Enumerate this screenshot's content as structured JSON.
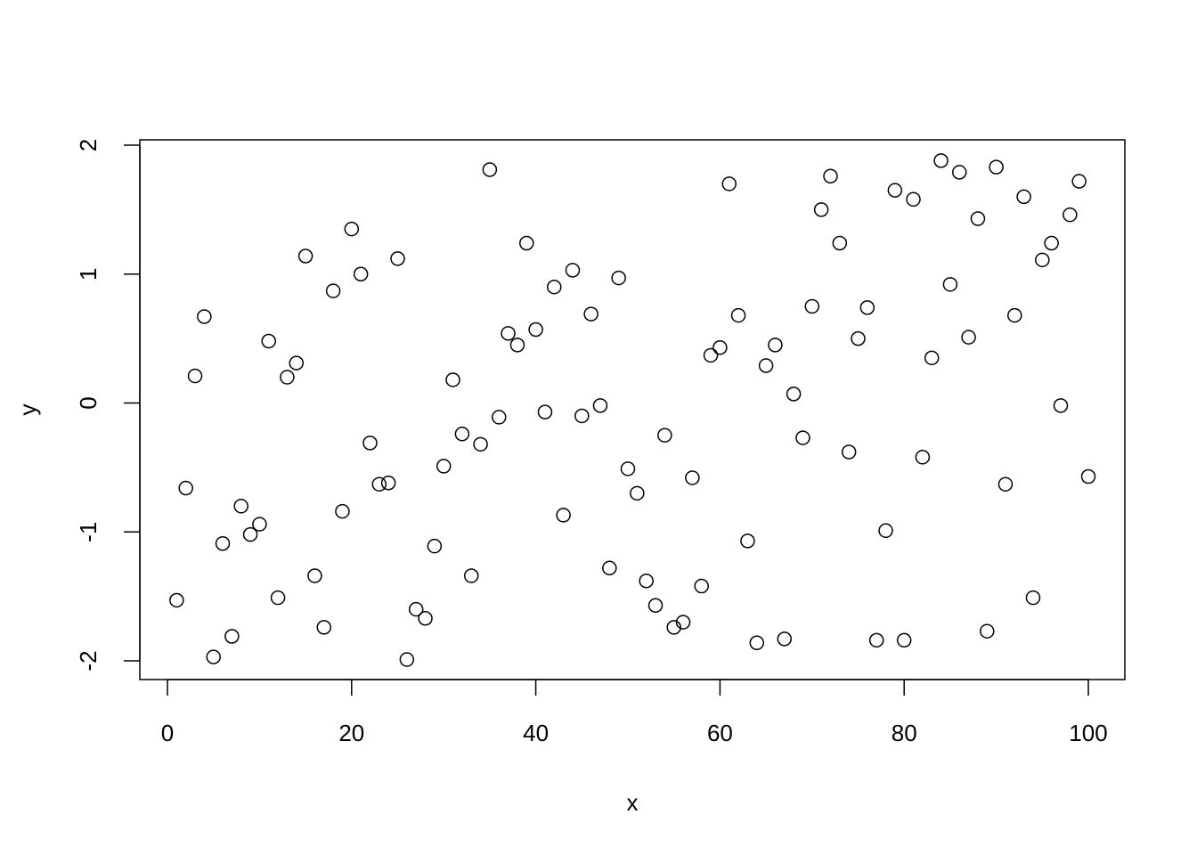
{
  "chart_data": {
    "type": "scatter",
    "title": "",
    "xlabel": "x",
    "ylabel": "y",
    "xlim": [
      -3.0,
      104.0
    ],
    "ylim": [
      -2.14,
      2.05
    ],
    "xticks": [
      0,
      20,
      40,
      60,
      80,
      100
    ],
    "xtick_labels": [
      "0",
      "20",
      "40",
      "60",
      "80",
      "100"
    ],
    "yticks": [
      -2,
      -1,
      0,
      1,
      2
    ],
    "ytick_labels": [
      "-2",
      "-1",
      "0",
      "1",
      "2"
    ],
    "grid": false,
    "marker": "open-circle",
    "marker_color": "#000000",
    "x": [
      1,
      2,
      3,
      4,
      5,
      6,
      7,
      8,
      9,
      10,
      11,
      12,
      13,
      14,
      15,
      16,
      17,
      18,
      19,
      20,
      21,
      22,
      23,
      24,
      25,
      26,
      27,
      28,
      29,
      30,
      31,
      32,
      33,
      34,
      35,
      36,
      37,
      38,
      39,
      40,
      41,
      42,
      43,
      44,
      45,
      46,
      47,
      48,
      49,
      50,
      51,
      52,
      53,
      54,
      55,
      56,
      57,
      58,
      59,
      60,
      61,
      62,
      63,
      64,
      65,
      66,
      67,
      68,
      69,
      70,
      71,
      72,
      73,
      74,
      75,
      76,
      77,
      78,
      79,
      80,
      81,
      82,
      83,
      84,
      85,
      86,
      87,
      88,
      89,
      90,
      91,
      92,
      93,
      94,
      95,
      96,
      97,
      98,
      99,
      100
    ],
    "y": [
      -1.53,
      -0.66,
      0.21,
      0.67,
      -1.97,
      -1.09,
      -1.81,
      -0.8,
      -1.02,
      -0.94,
      0.48,
      -1.51,
      0.2,
      0.31,
      1.14,
      -1.34,
      -1.74,
      0.87,
      -0.84,
      1.35,
      1.0,
      -0.31,
      -0.63,
      -0.62,
      1.12,
      -1.99,
      -1.6,
      -1.67,
      -1.11,
      -0.49,
      0.18,
      -0.24,
      -1.34,
      -0.32,
      1.81,
      -0.11,
      0.54,
      0.45,
      1.24,
      0.57,
      -0.07,
      0.9,
      -0.87,
      1.03,
      -0.1,
      0.69,
      -0.02,
      -1.28,
      0.97,
      -0.51,
      -0.7,
      -1.38,
      -1.57,
      -0.25,
      -1.74,
      -1.7,
      -0.58,
      -1.42,
      0.37,
      0.43,
      1.7,
      0.68,
      -1.07,
      -1.86,
      0.29,
      0.45,
      -1.83,
      0.07,
      -0.27,
      0.75,
      1.5,
      1.76,
      1.24,
      -0.38,
      0.5,
      0.74,
      -1.84,
      -0.99,
      1.65,
      -1.84,
      1.58,
      -0.42,
      0.35,
      1.88,
      0.92,
      1.79,
      0.51,
      1.43,
      -1.77,
      1.83,
      -0.63,
      0.68,
      1.6,
      -1.51,
      1.11,
      1.24,
      -0.02,
      1.46,
      1.72,
      -0.57
    ]
  }
}
